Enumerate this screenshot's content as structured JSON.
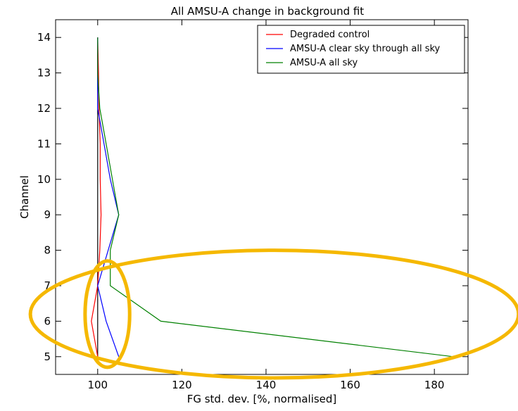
{
  "chart_data": {
    "type": "line",
    "title": "All AMSU-A change in background fit",
    "xlabel": "FG std. dev. [%, normalised]",
    "ylabel": "Channel",
    "xlim": [
      90,
      188
    ],
    "ylim": [
      4.5,
      14.5
    ],
    "xticks": [
      100,
      120,
      140,
      160,
      180
    ],
    "yticks": [
      5,
      6,
      7,
      8,
      9,
      10,
      11,
      12,
      13,
      14
    ],
    "grid": false,
    "legend_position": "top-right",
    "reference_line_x": 100,
    "series": [
      {
        "name": "Degraded control",
        "color": "#ff0000",
        "points": [
          [
            100,
            5
          ],
          [
            98.5,
            6
          ],
          [
            100,
            7
          ],
          [
            100.5,
            8
          ],
          [
            100.8,
            9
          ],
          [
            100.6,
            10
          ],
          [
            100.6,
            11
          ],
          [
            100.3,
            12
          ],
          [
            100.2,
            13
          ],
          [
            100,
            14
          ]
        ]
      },
      {
        "name": "AMSU-A clear sky through all sky",
        "color": "#0000ff",
        "points": [
          [
            105,
            5
          ],
          [
            102,
            6
          ],
          [
            100,
            7
          ],
          [
            102.5,
            8
          ],
          [
            105,
            9
          ],
          [
            103,
            10
          ],
          [
            101.5,
            11
          ],
          [
            100,
            12
          ],
          [
            100,
            13
          ],
          [
            100,
            14
          ]
        ]
      },
      {
        "name": "AMSU-A all sky",
        "color": "#008000",
        "points": [
          [
            184.5,
            5
          ],
          [
            115,
            6
          ],
          [
            103,
            7
          ],
          [
            103,
            8
          ],
          [
            105,
            9
          ],
          [
            103.5,
            10
          ],
          [
            102,
            11
          ],
          [
            100.5,
            12
          ],
          [
            100,
            13
          ],
          [
            100,
            14
          ]
        ]
      }
    ],
    "annotations": [
      {
        "shape": "ellipse",
        "color": "#f5b800",
        "cx": 142,
        "cy": 6.2,
        "rx": 58,
        "ry": 1.8
      },
      {
        "shape": "ellipse",
        "color": "#f5b800",
        "cx": 102.3,
        "cy": 6.2,
        "rx": 5.3,
        "ry": 1.5
      }
    ]
  }
}
